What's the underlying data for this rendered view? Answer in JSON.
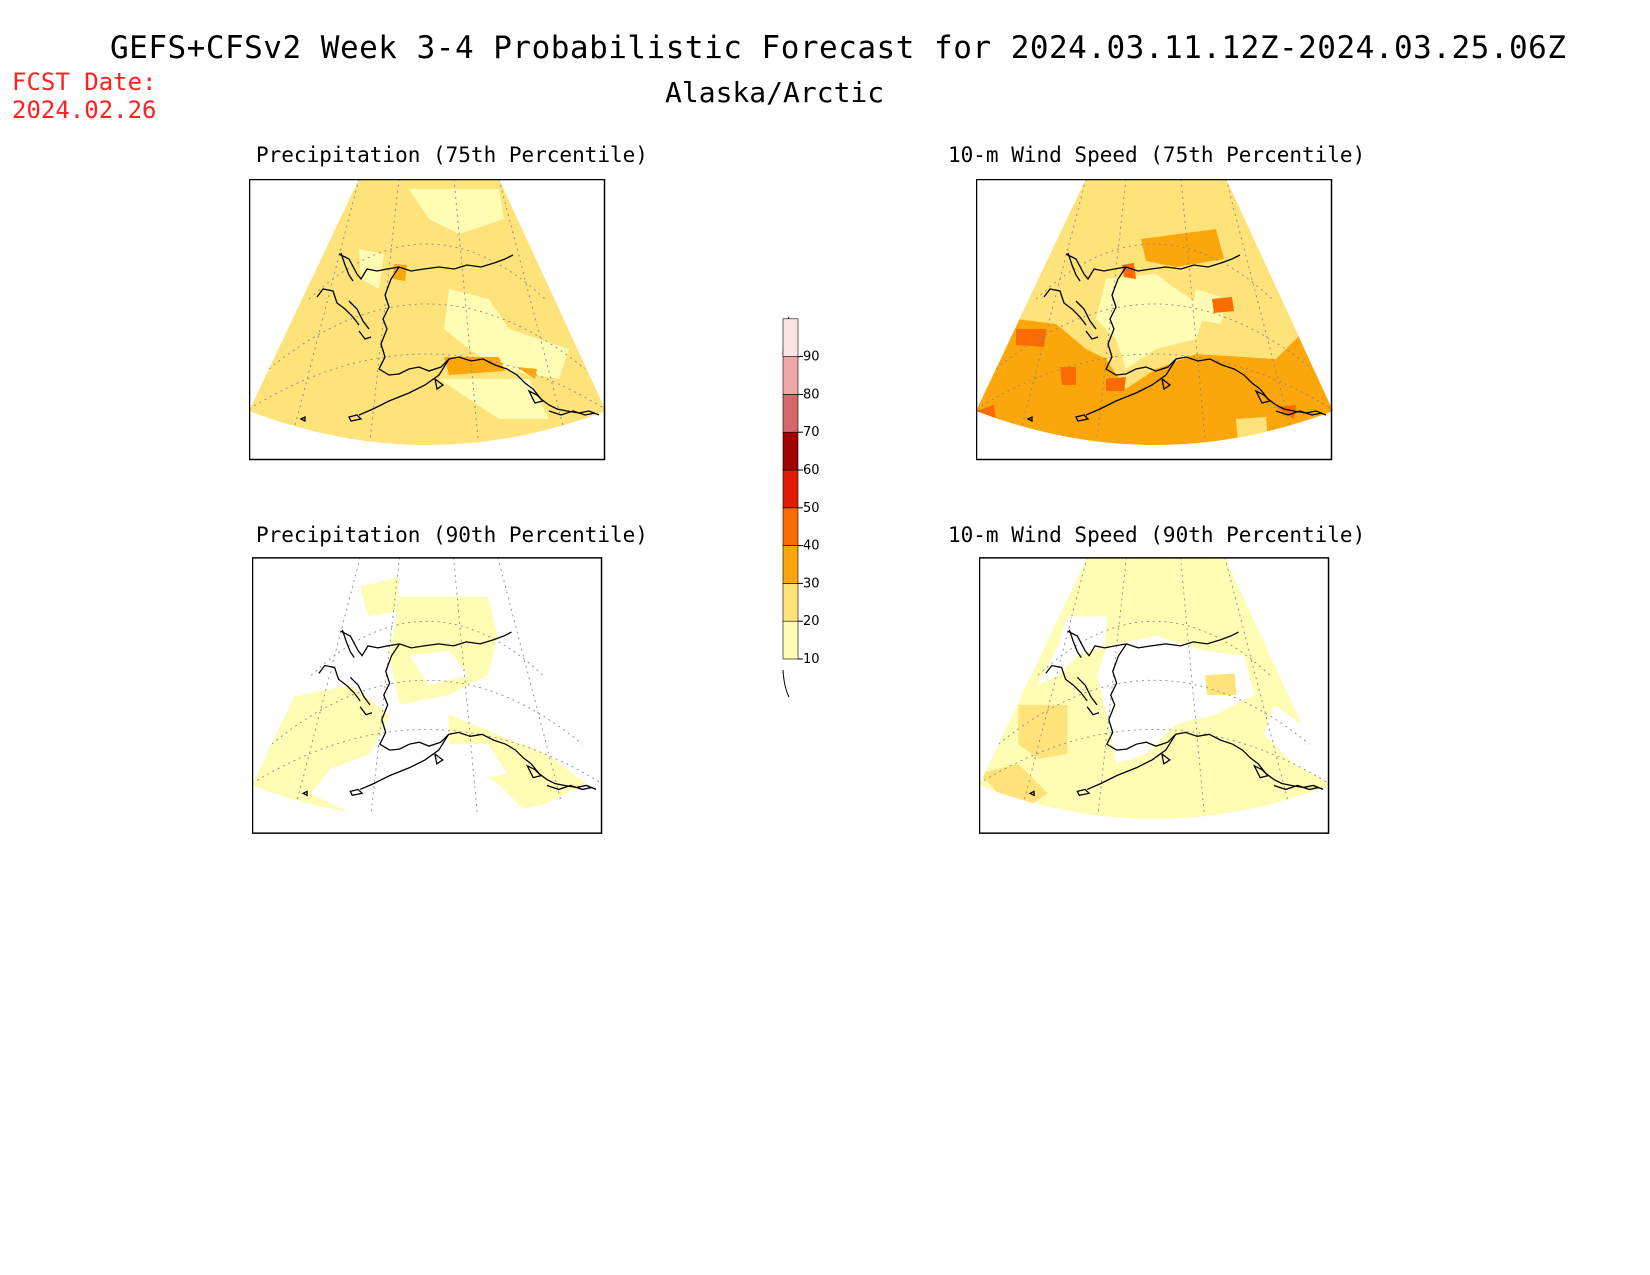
{
  "header": {
    "title": "GEFS+CFSv2 Week 3-4 Probabilistic Forecast for 2024.03.11.12Z-2024.03.25.06Z",
    "region": "Alaska/Arctic",
    "fcst_label": "FCST Date:",
    "fcst_date": "2024.02.26"
  },
  "panels": [
    {
      "id": "precip-75",
      "title": "Precipitation (75th Percentile)",
      "dominant_category": "20-30"
    },
    {
      "id": "wind-75",
      "title": "10-m Wind Speed (75th Percentile)",
      "dominant_category": "30-40"
    },
    {
      "id": "precip-90",
      "title": "Precipitation (90th Percentile)",
      "dominant_category": "10-20"
    },
    {
      "id": "wind-90",
      "title": "10-m Wind Speed (90th Percentile)",
      "dominant_category": "10-20"
    }
  ],
  "colorbar": {
    "levels": [
      "10",
      "20",
      "30",
      "40",
      "50",
      "60",
      "70",
      "80",
      "90"
    ],
    "colors": [
      "#fffcb4",
      "#fde37a",
      "#fba60a",
      "#fb6b00",
      "#e31b00",
      "#a30000",
      "#d8656a",
      "#f0a6a8",
      "#fde4e4"
    ]
  }
}
